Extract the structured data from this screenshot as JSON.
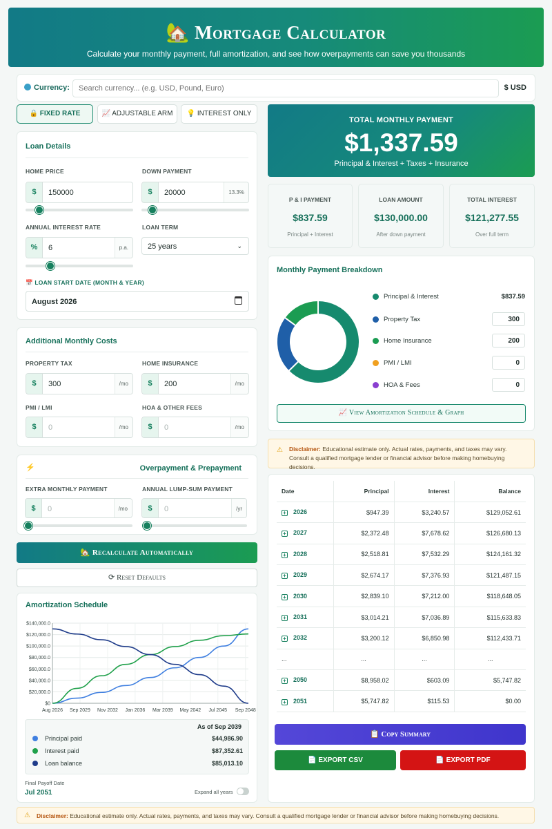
{
  "header": {
    "icon": "🏡",
    "title": "Mortgage Calculator",
    "subtitle": "Calculate your monthly payment, full amortization, and see how overpayments can save you thousands"
  },
  "currency": {
    "label": "Currency:",
    "placeholder": "Search currency... (e.g. USD, Pound, Euro)",
    "selected": "$ USD"
  },
  "tabs": [
    {
      "icon": "🔒",
      "label": "FIXED RATE"
    },
    {
      "icon": "📈",
      "label": "ADJUSTABLE ARM"
    },
    {
      "icon": "💡",
      "label": "INTEREST ONLY"
    }
  ],
  "loan_details": {
    "title": "Loan Details",
    "home_price": {
      "label": "HOME PRICE",
      "prefix": "$",
      "value": "150000"
    },
    "down_payment": {
      "label": "DOWN PAYMENT",
      "prefix": "$",
      "value": "20000",
      "suffix": "13.3%"
    },
    "interest_rate": {
      "label": "ANNUAL INTEREST RATE",
      "prefix": "%",
      "value": "6",
      "suffix": "p.a."
    },
    "loan_term": {
      "label": "LOAN TERM",
      "value": "25 years"
    },
    "start_date": {
      "label": "LOAN START DATE (MONTH & YEAR)",
      "icon": "📅",
      "value": "August 2026"
    }
  },
  "additional_costs": {
    "title": "Additional Monthly Costs",
    "property_tax": {
      "label": "PROPERTY TAX",
      "prefix": "$",
      "value": "300",
      "suffix": "/mo"
    },
    "home_insurance": {
      "label": "HOME INSURANCE",
      "prefix": "$",
      "value": "200",
      "suffix": "/mo"
    },
    "pmi": {
      "label": "PMI / LMI",
      "prefix": "$",
      "placeholder": "0",
      "suffix": "/mo"
    },
    "hoa": {
      "label": "HOA & OTHER FEES",
      "prefix": "$",
      "placeholder": "0",
      "suffix": "/mo"
    }
  },
  "overpayment": {
    "icon": "⚡",
    "title": "Overpayment & Prepayment",
    "extra_monthly": {
      "label": "EXTRA MONTHLY PAYMENT",
      "prefix": "$",
      "placeholder": "0",
      "suffix": "/mo"
    },
    "lump_sum": {
      "label": "ANNUAL LUMP-SUM PAYMENT",
      "prefix": "$",
      "placeholder": "0",
      "suffix": "/yr"
    }
  },
  "buttons": {
    "recalc": "🏡 Recalculate Automatically",
    "reset": "⟳ Reset Defaults",
    "amort": "📈 View Amortization Schedule & Graph",
    "copy": "📋 Copy Summary",
    "csv": "📄 EXPORT CSV",
    "pdf": "📄 EXPORT PDF"
  },
  "total": {
    "label": "TOTAL MONTHLY PAYMENT",
    "value": "$1,337.59",
    "note": "Principal & Interest + Taxes + Insurance"
  },
  "mini_cards": [
    {
      "label": "P & I PAYMENT",
      "value": "$837.59",
      "note": "Principal + Interest"
    },
    {
      "label": "LOAN AMOUNT",
      "value": "$130,000.00",
      "note": "After down payment"
    },
    {
      "label": "TOTAL INTEREST",
      "value": "$121,277.55",
      "note": "Over full term"
    }
  ],
  "breakdown": {
    "title": "Monthly Payment Breakdown",
    "items": [
      {
        "label": "Principal & Interest",
        "value": "$837.59",
        "color": "#168a6e",
        "amount": 837.59
      },
      {
        "label": "Property Tax",
        "value": "300",
        "color": "#1f5fa8",
        "amount": 300
      },
      {
        "label": "Home Insurance",
        "value": "200",
        "color": "#1b9c52",
        "amount": 200
      },
      {
        "label": "PMI / LMI",
        "value": "0",
        "color": "#f0a020",
        "amount": 0
      },
      {
        "label": "HOA & Fees",
        "value": "0",
        "color": "#8a3fd0",
        "amount": 0
      }
    ]
  },
  "disclaimer": {
    "label": "Disclaimer:",
    "text": "Educational estimate only. Actual rates, payments, and taxes may vary. Consult a qualified mortgage lender or financial advisor before making homebuying decisions."
  },
  "schedule": {
    "headers": [
      "Date",
      "Principal",
      "Interest",
      "Balance"
    ],
    "rows": [
      {
        "year": "2026",
        "principal": "$947.39",
        "interest": "$3,240.57",
        "balance": "$129,052.61"
      },
      {
        "year": "2027",
        "principal": "$2,372.48",
        "interest": "$7,678.62",
        "balance": "$126,680.13"
      },
      {
        "year": "2028",
        "principal": "$2,518.81",
        "interest": "$7,532.29",
        "balance": "$124,161.32"
      },
      {
        "year": "2029",
        "principal": "$2,674.17",
        "interest": "$7,376.93",
        "balance": "$121,487.15"
      },
      {
        "year": "2030",
        "principal": "$2,839.10",
        "interest": "$7,212.00",
        "balance": "$118,648.05"
      },
      {
        "year": "2031",
        "principal": "$3,014.21",
        "interest": "$7,036.89",
        "balance": "$115,633.83"
      },
      {
        "year": "2032",
        "principal": "$3,200.12",
        "interest": "$6,850.98",
        "balance": "$112,433.71"
      },
      {
        "year": "...",
        "principal": "...",
        "interest": "...",
        "balance": "..."
      },
      {
        "year": "2050",
        "principal": "$8,958.02",
        "interest": "$603.09",
        "balance": "$5,747.82"
      },
      {
        "year": "2051",
        "principal": "$5,747.82",
        "interest": "$115.53",
        "balance": "$0.00"
      }
    ]
  },
  "amort_chart": {
    "title": "Amortization Schedule",
    "as_of": "As of Sep 2039",
    "stats": [
      {
        "label": "Principal paid",
        "value": "$44,986.90",
        "color": "#3f7fe0"
      },
      {
        "label": "Interest paid",
        "value": "$87,352.61",
        "color": "#1fa04a"
      },
      {
        "label": "Loan balance",
        "value": "$85,013.10",
        "color": "#1f3c8a"
      }
    ],
    "final_label": "Final Payoff Date",
    "final_value": "Jul 2051",
    "expand_label": "Expand all years"
  },
  "chart_data": {
    "type": "line",
    "x": [
      "Aug 2026",
      "Sep 2029",
      "Nov 2032",
      "Jan 2036",
      "Mar 2039",
      "May 2042",
      "Jul 2045",
      "Sep 2048",
      "Jul 2051"
    ],
    "series": [
      {
        "name": "Principal paid",
        "color": "#3f7fe0",
        "values": [
          0,
          9000,
          19000,
          31000,
          45000,
          62000,
          80000,
          100000,
          130000
        ]
      },
      {
        "name": "Interest paid",
        "color": "#1fa04a",
        "values": [
          0,
          26000,
          48000,
          68000,
          85000,
          99000,
          110000,
          118000,
          121278
        ]
      },
      {
        "name": "Loan balance",
        "color": "#1f3c8a",
        "values": [
          130000,
          121000,
          111000,
          99000,
          85000,
          68000,
          50000,
          30000,
          0
        ]
      }
    ],
    "x_tick_labels": [
      "Aug 2026",
      "Sep 2029",
      "Nov 2032",
      "Jan 2036",
      "Mar 2039",
      "May 2042",
      "Jul 2045",
      "Sep 2048"
    ],
    "y_tick_labels": [
      "$0",
      "$20,000.0",
      "$40,000.0",
      "$60,000.0",
      "$80,000.0",
      "$100,000.0",
      "$120,000.0",
      "$140,000.0"
    ],
    "ylim": [
      0,
      140000
    ],
    "grid": true
  }
}
